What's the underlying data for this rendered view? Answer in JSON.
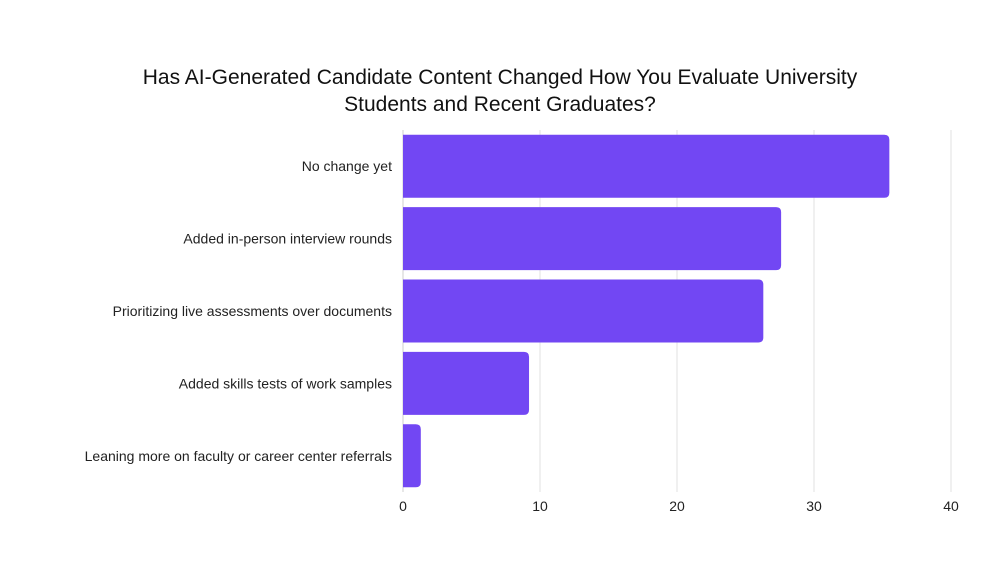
{
  "chart_data": {
    "type": "bar",
    "orientation": "horizontal",
    "title_lines": [
      "Has AI-Generated Candidate Content Changed How You Evaluate University",
      "Students and Recent Graduates?"
    ],
    "categories": [
      "No change yet",
      "Added in-person interview rounds",
      "Prioritizing live assessments over documents",
      "Added skills tests of work samples",
      "Leaning more on faculty or career center referrals"
    ],
    "values": [
      35.5,
      27.6,
      26.3,
      9.2,
      1.3
    ],
    "xlim": [
      0,
      40
    ],
    "xticks": [
      "0",
      "10",
      "20",
      "30",
      "40"
    ],
    "grid": true,
    "bar_color": "#7247F3",
    "grid_color": "#e2e2e2"
  }
}
